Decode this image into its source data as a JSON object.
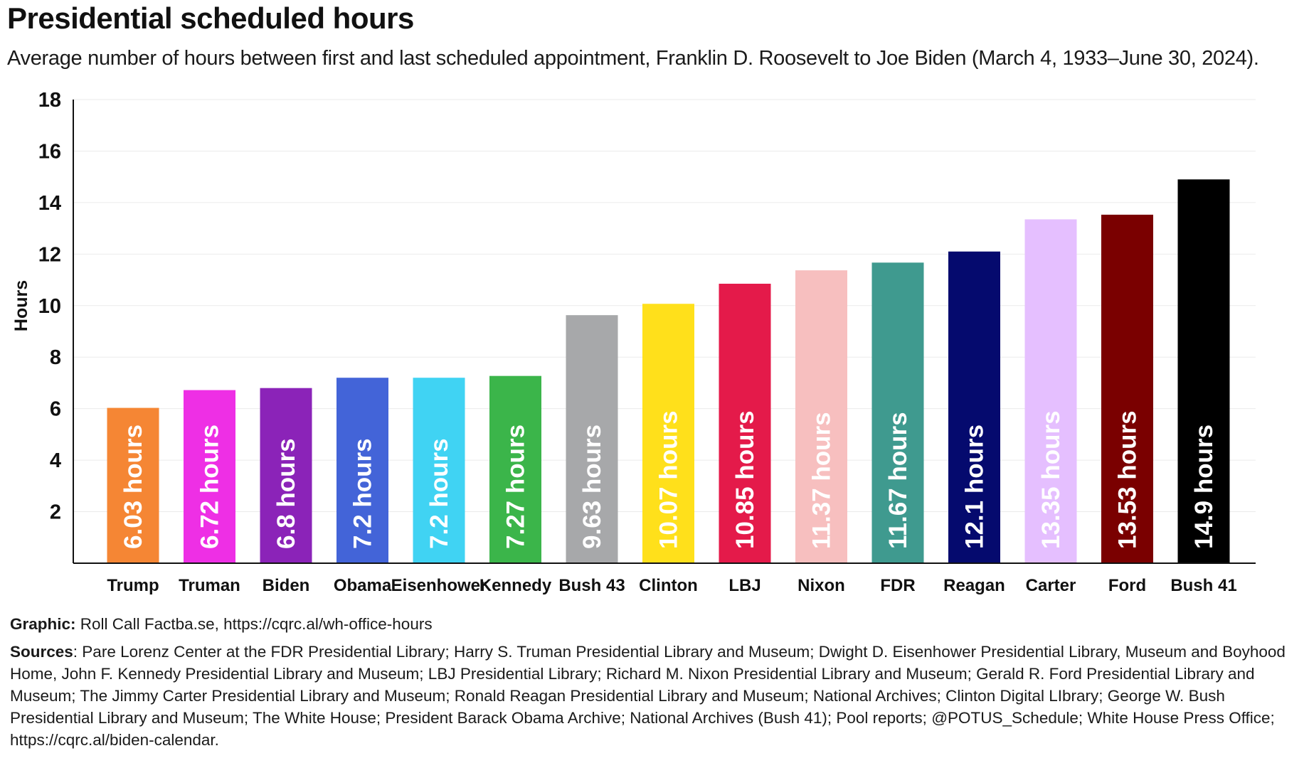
{
  "title": "Presidential scheduled hours",
  "subtitle": "Average number of hours between first and last scheduled appointment, Franklin D. Roosevelt to Joe Biden (March 4, 1933–June 30, 2024).",
  "footer": {
    "graphic_label": "Graphic:",
    "graphic_text": "Roll Call Factba.se, https://cqrc.al/wh-office-hours",
    "sources_label": "Sources",
    "sources_text": ": Pare Lorenz Center at the FDR Presidential Library; Harry S. Truman Presidential Library and Museum; Dwight D. Eisenhower Presidential Library, Museum and Boyhood Home, John F. Kennedy Presidential Library and Museum; LBJ Presidential Library; Richard M. Nixon Presidential Library and Museum; Gerald R. Ford Presidential Library and Museum; The Jimmy Carter Presidential Library and Museum; Ronald Reagan Presidential Library and Museum; National Archives; Clinton Digital LIbrary; George W. Bush Presidential Library and Museum; The White House; President Barack Obama Archive; National Archives (Bush 41); Pool reports; @POTUS_Schedule; White House Press Office; https://cqrc.al/biden-calendar."
  },
  "chart_data": {
    "type": "bar",
    "title": "Presidential scheduled hours",
    "subtitle": "Average number of hours between first and last scheduled appointment, Franklin D. Roosevelt to Joe Biden (March 4, 1933–June 30, 2024).",
    "xlabel": "",
    "ylabel": "Hours",
    "ylim": [
      0,
      18
    ],
    "yticks": [
      2,
      4,
      6,
      8,
      10,
      12,
      14,
      16,
      18
    ],
    "grid": true,
    "legend": "none",
    "categories": [
      "Trump",
      "Truman",
      "Biden",
      "Obama",
      "Eisenhower",
      "Kennedy",
      "Bush 43",
      "Clinton",
      "LBJ",
      "Nixon",
      "FDR",
      "Reagan",
      "Carter",
      "Ford",
      "Bush 41"
    ],
    "values": [
      6.03,
      6.72,
      6.8,
      7.2,
      7.2,
      7.27,
      9.63,
      10.07,
      10.85,
      11.37,
      11.67,
      12.1,
      13.35,
      13.53,
      14.9
    ],
    "data_labels": [
      "6.03 hours",
      "6.72 hours",
      "6.8 hours",
      "7.2 hours",
      "7.2 hours",
      "7.27 hours",
      "9.63 hours",
      "10.07 hours",
      "10.85 hours",
      "11.37 hours",
      "11.67 hours",
      "12.1 hours",
      "13.35 hours",
      "13.53 hours",
      "14.9 hours"
    ],
    "colors": [
      "#f58634",
      "#ee2fe5",
      "#8b23b8",
      "#4364d8",
      "#40d3f3",
      "#3bb54a",
      "#a7a8aa",
      "#ffe01b",
      "#e41a4a",
      "#f7bfbf",
      "#3f9a8f",
      "#050a6e",
      "#e5bfff",
      "#7a0000",
      "#000000"
    ],
    "label_colors": [
      "#ffffff",
      "#ffffff",
      "#ffffff",
      "#ffffff",
      "#ffffff",
      "#ffffff",
      "#ffffff",
      "#ffffff",
      "#ffffff",
      "#ffffff",
      "#ffffff",
      "#ffffff",
      "#ffffff",
      "#ffffff",
      "#ffffff"
    ]
  }
}
